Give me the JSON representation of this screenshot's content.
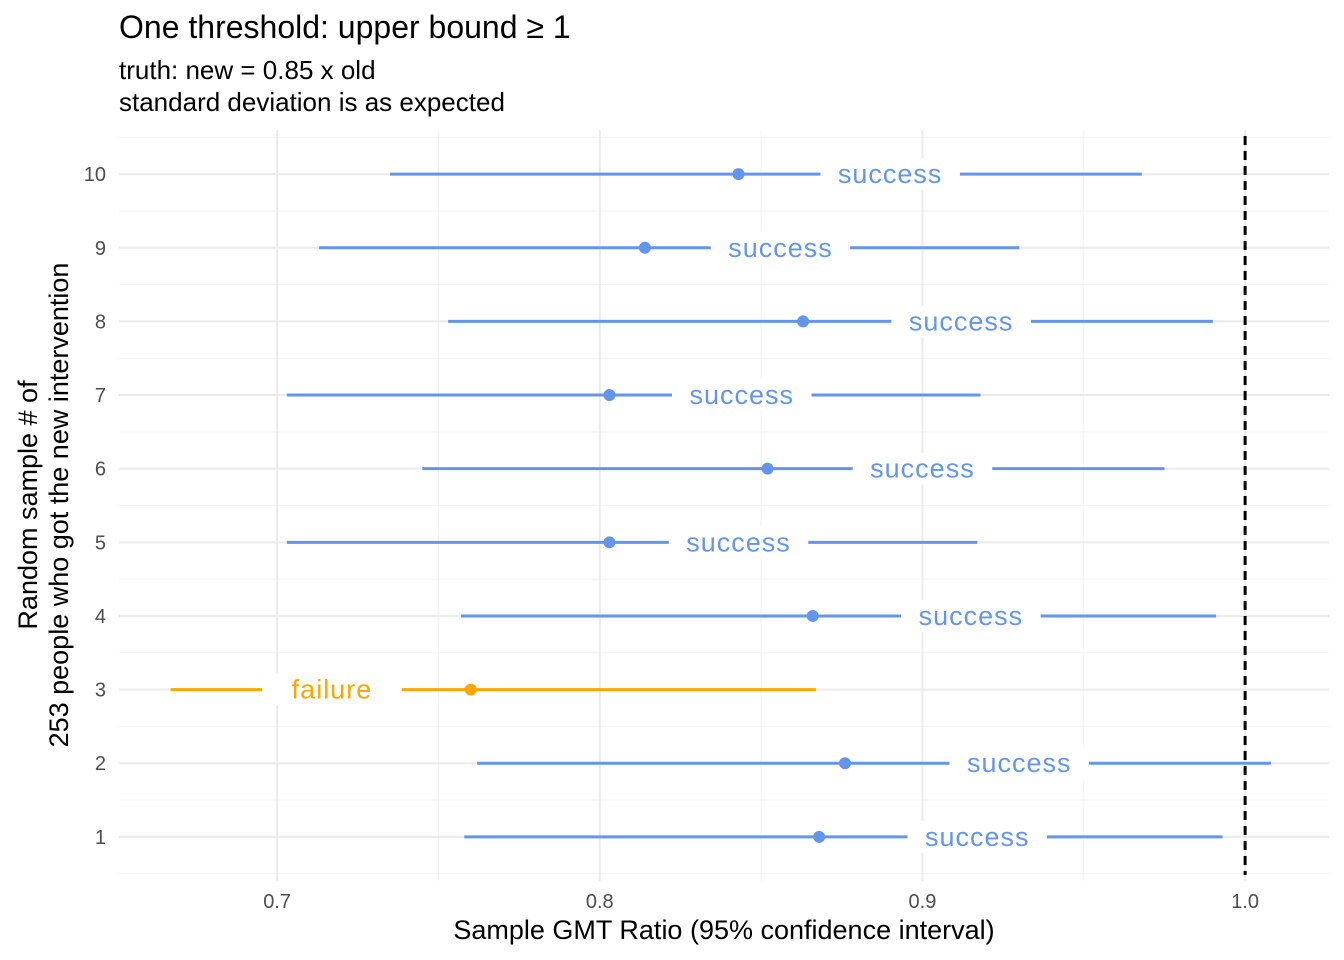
{
  "chart_data": {
    "type": "interval",
    "title": "One threshold: upper bound ≥ 1",
    "subtitle_lines": [
      "truth: new = 0.85 x old",
      "standard deviation is as expected"
    ],
    "xlabel": "Sample GMT Ratio (95% confidence interval)",
    "ylabel_lines": [
      "Random sample # of",
      "253 people who got the new intervention"
    ],
    "xlim": [
      0.651,
      1.026
    ],
    "x_ticks": [
      {
        "value": 0.7,
        "label": "0.7"
      },
      {
        "value": 0.8,
        "label": "0.8"
      },
      {
        "value": 0.9,
        "label": "0.9"
      },
      {
        "value": 1.0,
        "label": "1.0"
      }
    ],
    "y_ticks": [
      "1",
      "2",
      "3",
      "4",
      "5",
      "6",
      "7",
      "8",
      "9",
      "10"
    ],
    "threshold": 1.0,
    "grid": true,
    "colors": {
      "success": "#6495ED",
      "failure": "#FFA500",
      "threshold": "#000000"
    },
    "intervals": [
      {
        "sample": 1,
        "estimate": 0.868,
        "lower": 0.758,
        "upper": 0.993,
        "outcome": "success",
        "label": "success",
        "label_x": 0.917
      },
      {
        "sample": 2,
        "estimate": 0.876,
        "lower": 0.762,
        "upper": 1.008,
        "outcome": "success",
        "label": "success",
        "label_x": 0.93
      },
      {
        "sample": 3,
        "estimate": 0.76,
        "lower": 0.667,
        "upper": 0.867,
        "outcome": "failure",
        "label": "failure",
        "label_x": 0.717
      },
      {
        "sample": 4,
        "estimate": 0.866,
        "lower": 0.757,
        "upper": 0.991,
        "outcome": "success",
        "label": "success",
        "label_x": 0.915
      },
      {
        "sample": 5,
        "estimate": 0.803,
        "lower": 0.703,
        "upper": 0.917,
        "outcome": "success",
        "label": "success",
        "label_x": 0.843
      },
      {
        "sample": 6,
        "estimate": 0.852,
        "lower": 0.745,
        "upper": 0.975,
        "outcome": "success",
        "label": "success",
        "label_x": 0.9
      },
      {
        "sample": 7,
        "estimate": 0.803,
        "lower": 0.703,
        "upper": 0.918,
        "outcome": "success",
        "label": "success",
        "label_x": 0.844
      },
      {
        "sample": 8,
        "estimate": 0.863,
        "lower": 0.753,
        "upper": 0.99,
        "outcome": "success",
        "label": "success",
        "label_x": 0.912
      },
      {
        "sample": 9,
        "estimate": 0.814,
        "lower": 0.713,
        "upper": 0.93,
        "outcome": "success",
        "label": "success",
        "label_x": 0.856
      },
      {
        "sample": 10,
        "estimate": 0.843,
        "lower": 0.735,
        "upper": 0.968,
        "outcome": "success",
        "label": "success",
        "label_x": 0.89
      }
    ]
  }
}
